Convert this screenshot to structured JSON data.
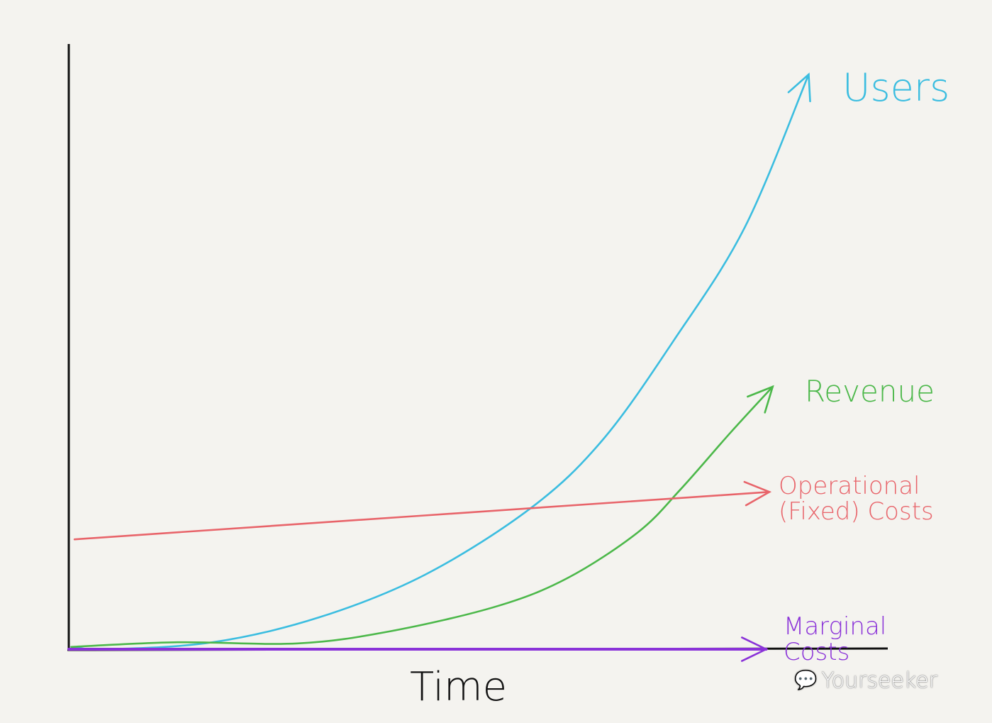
{
  "chart_data": {
    "type": "line",
    "title": "",
    "xlabel": "Time",
    "ylabel": "",
    "xlim": [
      0,
      100
    ],
    "ylim": [
      0,
      100
    ],
    "grid": false,
    "legend": "labels at line ends",
    "series": [
      {
        "name": "Users",
        "color": "#3bbde0",
        "x": [
          0.3,
          4.6,
          17.6,
          30.6,
          43.6,
          56.6,
          65.3,
          74.0,
          82.7,
          90.5
        ],
        "y": [
          0.4,
          0,
          1.2,
          5.5,
          12.9,
          24.5,
          36.2,
          53.4,
          73.0,
          99.4
        ]
      },
      {
        "name": "Revenue",
        "color": "#4cb84a",
        "x": [
          0.3,
          13.3,
          28.0,
          39.3,
          52.3,
          61.0,
          69.6,
          74.8,
          80.9,
          86.1
        ],
        "y": [
          0.4,
          1.2,
          1.0,
          3.1,
          7.4,
          12.3,
          20.2,
          27.6,
          37.4,
          45.4
        ]
      },
      {
        "name": "Operational (Fixed) Costs",
        "color": "#e8646a",
        "x": [
          0.7,
          85.7
        ],
        "y": [
          19.0,
          27.2
        ]
      },
      {
        "name": "Marginal Costs",
        "color": "#8a32d8",
        "x": [
          0,
          85.3
        ],
        "y": [
          0,
          0
        ]
      }
    ]
  },
  "labels": {
    "users": "Users",
    "revenue": "Revenue",
    "operational": "Operational (Fixed) Costs",
    "marginal": "Marginal Costs"
  },
  "watermark": "Yourseeker"
}
